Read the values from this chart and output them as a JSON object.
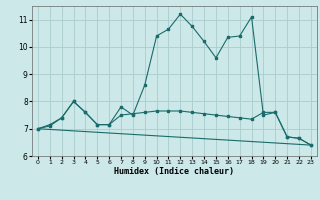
{
  "xlabel": "Humidex (Indice chaleur)",
  "bg_color": "#cce8e8",
  "grid_color": "#aacccc",
  "line_color": "#1a6b6b",
  "xlim": [
    -0.5,
    23.5
  ],
  "ylim": [
    6.0,
    11.5
  ],
  "yticks": [
    6,
    7,
    8,
    9,
    10,
    11
  ],
  "xticks": [
    0,
    1,
    2,
    3,
    4,
    5,
    6,
    7,
    8,
    9,
    10,
    11,
    12,
    13,
    14,
    15,
    16,
    17,
    18,
    19,
    20,
    21,
    22,
    23
  ],
  "series1_x": [
    0,
    1,
    2,
    3,
    4,
    5,
    6,
    7,
    8,
    9,
    10,
    11,
    12,
    13,
    14,
    15,
    16,
    17,
    18,
    19,
    20,
    21,
    22,
    23
  ],
  "series1_y": [
    7.0,
    7.1,
    7.4,
    8.0,
    7.6,
    7.15,
    7.15,
    7.8,
    7.5,
    8.6,
    10.4,
    10.65,
    11.2,
    10.75,
    10.2,
    9.6,
    10.35,
    10.4,
    11.1,
    7.5,
    7.6,
    6.7,
    6.65,
    6.4
  ],
  "series2_x": [
    0,
    1,
    2,
    3,
    4,
    5,
    6,
    7,
    8,
    9,
    10,
    11,
    12,
    13,
    14,
    15,
    16,
    17,
    18,
    19,
    20,
    21,
    22,
    23
  ],
  "series2_y": [
    7.0,
    7.15,
    7.4,
    8.0,
    7.6,
    7.15,
    7.15,
    7.5,
    7.55,
    7.6,
    7.65,
    7.65,
    7.65,
    7.6,
    7.55,
    7.5,
    7.45,
    7.4,
    7.35,
    7.6,
    7.6,
    6.7,
    6.65,
    6.4
  ],
  "series3_x": [
    0,
    23
  ],
  "series3_y": [
    7.0,
    6.4
  ]
}
